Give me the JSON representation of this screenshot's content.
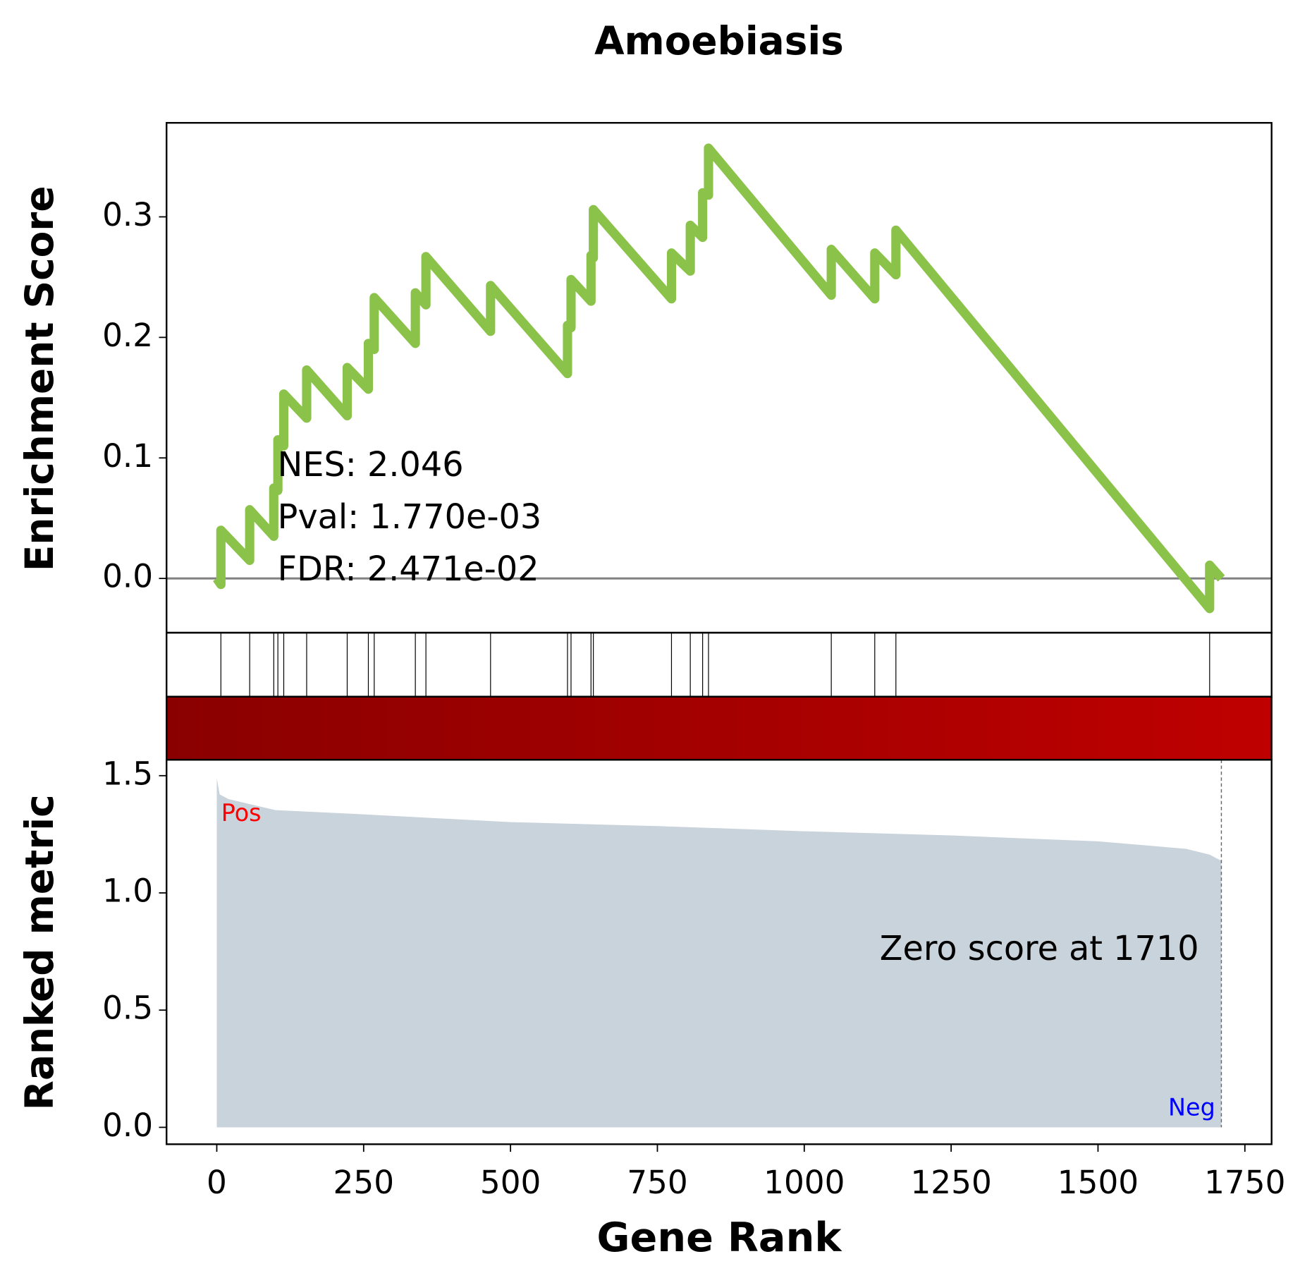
{
  "chart_data": {
    "type": "gsea",
    "title": "Amoebiasis",
    "xlabel": "Gene Rank",
    "xlim": [
      -85.5,
      1795.5
    ],
    "xticks": [
      0,
      250,
      500,
      750,
      1000,
      1250,
      1500,
      1750
    ],
    "es": {
      "ylabel": "Enrichment Score",
      "ylim": [
        -0.045,
        0.378
      ],
      "yticks": [
        {
          "value": 0,
          "label": "0.0"
        },
        {
          "value": 0.1,
          "label": "0.1"
        },
        {
          "value": 0.2,
          "label": "0.2"
        },
        {
          "value": 0.3,
          "label": "0.3"
        }
      ],
      "color": "#8bc34a",
      "x": [
        0,
        7,
        7,
        56,
        56,
        97,
        97,
        104,
        104,
        114,
        114,
        153,
        153,
        222,
        222,
        258,
        258,
        268,
        268,
        338,
        338,
        356,
        356,
        466,
        466,
        597,
        597,
        603,
        603,
        637,
        637,
        641,
        641,
        774,
        774,
        806,
        806,
        827,
        827,
        837,
        837,
        1046,
        1046,
        1120,
        1120,
        1156,
        1156,
        1690,
        1690,
        1710
      ],
      "values": [
        0,
        -0.005,
        0.04,
        0.015,
        0.057,
        0.035,
        0.075,
        0.073,
        0.115,
        0.11,
        0.153,
        0.133,
        0.173,
        0.135,
        0.175,
        0.157,
        0.195,
        0.19,
        0.233,
        0.195,
        0.237,
        0.227,
        0.267,
        0.205,
        0.243,
        0.17,
        0.21,
        0.208,
        0.248,
        0.23,
        0.268,
        0.266,
        0.306,
        0.232,
        0.27,
        0.255,
        0.293,
        0.283,
        0.32,
        0.318,
        0.357,
        0.235,
        0.273,
        0.232,
        0.27,
        0.252,
        0.289,
        -0.025,
        0.011,
        0
      ],
      "annotations": [
        "NES: 2.046",
        "Pval: 1.770e-03",
        "FDR: 2.471e-02"
      ]
    },
    "hits": [
      7,
      56,
      97,
      104,
      114,
      153,
      222,
      258,
      268,
      338,
      356,
      466,
      597,
      603,
      637,
      641,
      774,
      806,
      827,
      837,
      1046,
      1120,
      1156,
      1690
    ],
    "heatmap_colors": [
      "#8a0000",
      "#bf0000"
    ],
    "metric": {
      "ylabel": "Ranked metric",
      "ylim": [
        -0.072,
        1.568
      ],
      "yticks": [
        {
          "value": 0,
          "label": "0.0"
        },
        {
          "value": 0.5,
          "label": "0.5"
        },
        {
          "value": 1,
          "label": "1.0"
        },
        {
          "value": 1.5,
          "label": "1.5"
        }
      ],
      "color": "#c9d3dc",
      "x": [
        0,
        5,
        20,
        100,
        250,
        500,
        750,
        1000,
        1250,
        1500,
        1650,
        1690,
        1710
      ],
      "values": [
        1.489,
        1.42,
        1.4,
        1.353,
        1.335,
        1.302,
        1.285,
        1.263,
        1.245,
        1.22,
        1.188,
        1.163,
        1.137
      ],
      "pos_label": "Pos",
      "neg_label": "Neg",
      "zero_label": "Zero score at 1710",
      "zero_rank": 1710
    }
  }
}
